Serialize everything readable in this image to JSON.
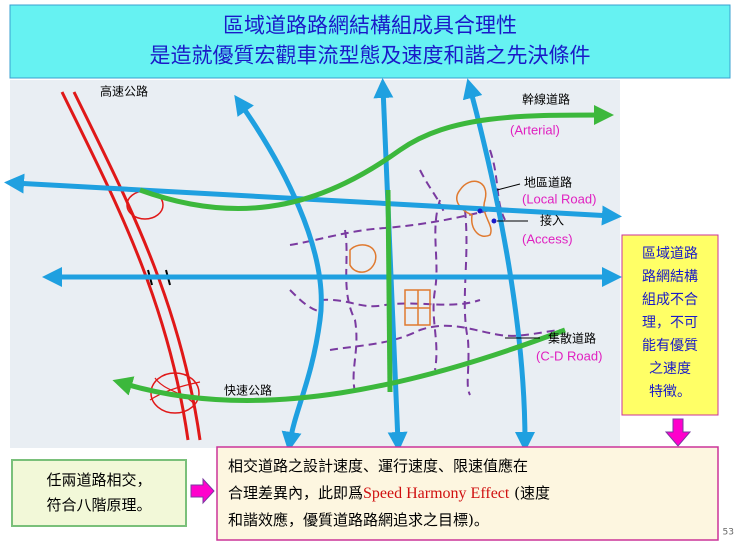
{
  "header": {
    "title": "區域道路路網結構組成具合理性",
    "subtitle": "是造就優質宏觀車流型態及速度和諧之先決條件"
  },
  "labels": {
    "highway": "高速公路",
    "arterial": "幹線道路",
    "arterial_en": "(Arterial)",
    "local": "地區道路",
    "local_en": "(Local Road)",
    "access": "接入",
    "access_en": "(Access)",
    "collector": "集散道路",
    "collector_en": "(C-D Road)",
    "expressway": "快速公路"
  },
  "notes": {
    "right": [
      "區域道路",
      "路網結構",
      "組成不合",
      "理，不可",
      "能有優質",
      "之速度",
      "特徵。"
    ],
    "left": [
      "任兩道路相交，",
      "符合八階原理。"
    ],
    "bottom": [
      "相交道路之設計速度、運行速度、限速值應在",
      "合理差異內，此即爲",
      "Speed Harmony Effect",
      " (速度",
      "和諧效應，優質道路路網追求之目標)。"
    ]
  },
  "page_number": "53"
}
